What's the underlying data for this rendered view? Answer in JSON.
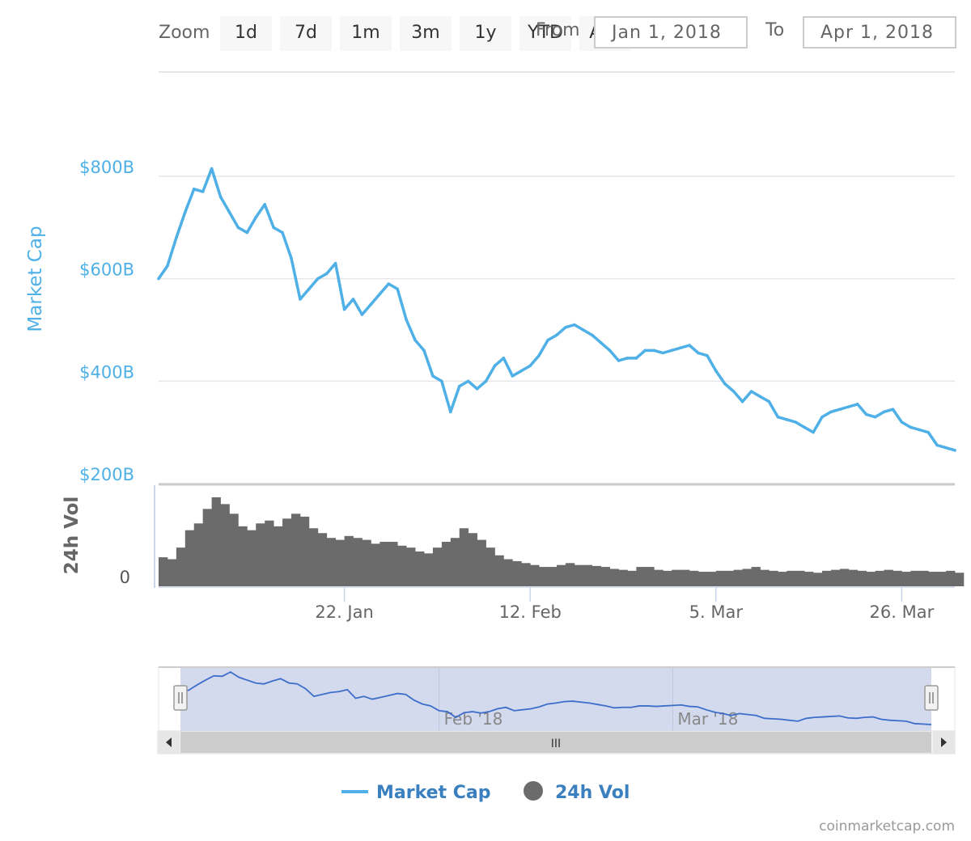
{
  "range_selector": {
    "zoom_label": "Zoom",
    "buttons": [
      "1d",
      "7d",
      "1m",
      "3m",
      "1y",
      "YTD",
      "ALL"
    ],
    "from_label": "From",
    "from_value": "Jan 1, 2018",
    "to_label": "To",
    "to_value": "Apr 1, 2018"
  },
  "credit": "coinmarketcap.com",
  "colors": {
    "market_cap": "#4eb0e6",
    "volume": "#6b6b6b",
    "navigator_line": "#3d6ec9",
    "navigator_mask": "#d3daee",
    "legend_text": "#3a7fbf"
  },
  "chart_data": {
    "type": "line",
    "x_range": [
      "2018-01-01",
      "2018-04-01"
    ],
    "x_ticks": [
      {
        "date": "2018-01-22",
        "label": "22. Jan"
      },
      {
        "date": "2018-02-12",
        "label": "12. Feb"
      },
      {
        "date": "2018-03-05",
        "label": "5. Mar"
      },
      {
        "date": "2018-03-26",
        "label": "26. Mar"
      }
    ],
    "navigator_ticks": [
      {
        "date": "2018-02-01",
        "label": "Feb '18"
      },
      {
        "date": "2018-03-01",
        "label": "Mar '18"
      }
    ],
    "market_cap_axis": {
      "label": "Market Cap",
      "ylim": [
        200,
        800
      ],
      "ticks": [
        {
          "value": 800,
          "label": "$800B"
        },
        {
          "value": 600,
          "label": "$600B"
        },
        {
          "value": 400,
          "label": "$400B"
        },
        {
          "value": 200,
          "label": "$200B"
        }
      ]
    },
    "volume_axis": {
      "label": "24h Vol",
      "ticks": [
        {
          "value": 0,
          "label": "0"
        }
      ]
    },
    "series": [
      {
        "name": "Market Cap",
        "unit": "USD billions",
        "x": [
          "2018-01-01",
          "2018-01-02",
          "2018-01-03",
          "2018-01-04",
          "2018-01-05",
          "2018-01-06",
          "2018-01-07",
          "2018-01-08",
          "2018-01-09",
          "2018-01-10",
          "2018-01-11",
          "2018-01-12",
          "2018-01-13",
          "2018-01-14",
          "2018-01-15",
          "2018-01-16",
          "2018-01-17",
          "2018-01-18",
          "2018-01-19",
          "2018-01-20",
          "2018-01-21",
          "2018-01-22",
          "2018-01-23",
          "2018-01-24",
          "2018-01-25",
          "2018-01-26",
          "2018-01-27",
          "2018-01-28",
          "2018-01-29",
          "2018-01-30",
          "2018-01-31",
          "2018-02-01",
          "2018-02-02",
          "2018-02-03",
          "2018-02-04",
          "2018-02-05",
          "2018-02-06",
          "2018-02-07",
          "2018-02-08",
          "2018-02-09",
          "2018-02-10",
          "2018-02-11",
          "2018-02-12",
          "2018-02-13",
          "2018-02-14",
          "2018-02-15",
          "2018-02-16",
          "2018-02-17",
          "2018-02-18",
          "2018-02-19",
          "2018-02-20",
          "2018-02-21",
          "2018-02-22",
          "2018-02-23",
          "2018-02-24",
          "2018-02-25",
          "2018-02-26",
          "2018-02-27",
          "2018-02-28",
          "2018-03-01",
          "2018-03-02",
          "2018-03-03",
          "2018-03-04",
          "2018-03-05",
          "2018-03-06",
          "2018-03-07",
          "2018-03-08",
          "2018-03-09",
          "2018-03-10",
          "2018-03-11",
          "2018-03-12",
          "2018-03-13",
          "2018-03-14",
          "2018-03-15",
          "2018-03-16",
          "2018-03-17",
          "2018-03-18",
          "2018-03-19",
          "2018-03-20",
          "2018-03-21",
          "2018-03-22",
          "2018-03-23",
          "2018-03-24",
          "2018-03-25",
          "2018-03-26",
          "2018-03-27",
          "2018-03-28",
          "2018-03-29",
          "2018-03-30",
          "2018-03-31",
          "2018-04-01"
        ],
        "values": [
          600,
          625,
          680,
          730,
          775,
          770,
          815,
          760,
          730,
          700,
          690,
          720,
          745,
          700,
          690,
          640,
          560,
          580,
          600,
          610,
          630,
          540,
          560,
          530,
          550,
          570,
          590,
          580,
          520,
          480,
          460,
          410,
          400,
          340,
          390,
          400,
          385,
          400,
          430,
          445,
          410,
          420,
          430,
          450,
          480,
          490,
          505,
          510,
          500,
          490,
          475,
          460,
          440,
          445,
          445,
          460,
          460,
          455,
          460,
          465,
          470,
          455,
          450,
          420,
          395,
          380,
          360,
          380,
          370,
          360,
          330,
          325,
          320,
          310,
          300,
          330,
          340,
          345,
          350,
          355,
          335,
          330,
          340,
          345,
          320,
          310,
          305,
          300,
          275,
          270,
          265
        ]
      },
      {
        "name": "24h Vol",
        "unit": "USD billions",
        "x": [
          "2018-01-01",
          "2018-01-02",
          "2018-01-03",
          "2018-01-04",
          "2018-01-05",
          "2018-01-06",
          "2018-01-07",
          "2018-01-08",
          "2018-01-09",
          "2018-01-10",
          "2018-01-11",
          "2018-01-12",
          "2018-01-13",
          "2018-01-14",
          "2018-01-15",
          "2018-01-16",
          "2018-01-17",
          "2018-01-18",
          "2018-01-19",
          "2018-01-20",
          "2018-01-21",
          "2018-01-22",
          "2018-01-23",
          "2018-01-24",
          "2018-01-25",
          "2018-01-26",
          "2018-01-27",
          "2018-01-28",
          "2018-01-29",
          "2018-01-30",
          "2018-01-31",
          "2018-02-01",
          "2018-02-02",
          "2018-02-03",
          "2018-02-04",
          "2018-02-05",
          "2018-02-06",
          "2018-02-07",
          "2018-02-08",
          "2018-02-09",
          "2018-02-10",
          "2018-02-11",
          "2018-02-12",
          "2018-02-13",
          "2018-02-14",
          "2018-02-15",
          "2018-02-16",
          "2018-02-17",
          "2018-02-18",
          "2018-02-19",
          "2018-02-20",
          "2018-02-21",
          "2018-02-22",
          "2018-02-23",
          "2018-02-24",
          "2018-02-25",
          "2018-02-26",
          "2018-02-27",
          "2018-02-28",
          "2018-03-01",
          "2018-03-02",
          "2018-03-03",
          "2018-03-04",
          "2018-03-05",
          "2018-03-06",
          "2018-03-07",
          "2018-03-08",
          "2018-03-09",
          "2018-03-10",
          "2018-03-11",
          "2018-03-12",
          "2018-03-13",
          "2018-03-14",
          "2018-03-15",
          "2018-03-16",
          "2018-03-17",
          "2018-03-18",
          "2018-03-19",
          "2018-03-20",
          "2018-03-21",
          "2018-03-22",
          "2018-03-23",
          "2018-03-24",
          "2018-03-25",
          "2018-03-26",
          "2018-03-27",
          "2018-03-28",
          "2018-03-29",
          "2018-03-30",
          "2018-03-31",
          "2018-04-01"
        ],
        "values": [
          30,
          28,
          40,
          58,
          65,
          80,
          92,
          85,
          75,
          62,
          58,
          65,
          68,
          62,
          70,
          75,
          72,
          60,
          55,
          50,
          48,
          52,
          50,
          48,
          44,
          46,
          46,
          42,
          40,
          36,
          34,
          40,
          46,
          50,
          60,
          55,
          48,
          40,
          32,
          28,
          26,
          24,
          22,
          20,
          20,
          22,
          24,
          22,
          22,
          21,
          20,
          18,
          17,
          16,
          20,
          20,
          17,
          16,
          17,
          17,
          16,
          15,
          15,
          16,
          16,
          17,
          18,
          20,
          17,
          16,
          15,
          16,
          16,
          15,
          14,
          16,
          17,
          18,
          17,
          16,
          15,
          16,
          17,
          16,
          15,
          16,
          16,
          15,
          15,
          16,
          14
        ]
      }
    ],
    "legend": {
      "placement": "bottom-center",
      "items": [
        "Market Cap",
        "24h Vol"
      ]
    },
    "navigator": {
      "scrollbar_grip": "III"
    }
  }
}
